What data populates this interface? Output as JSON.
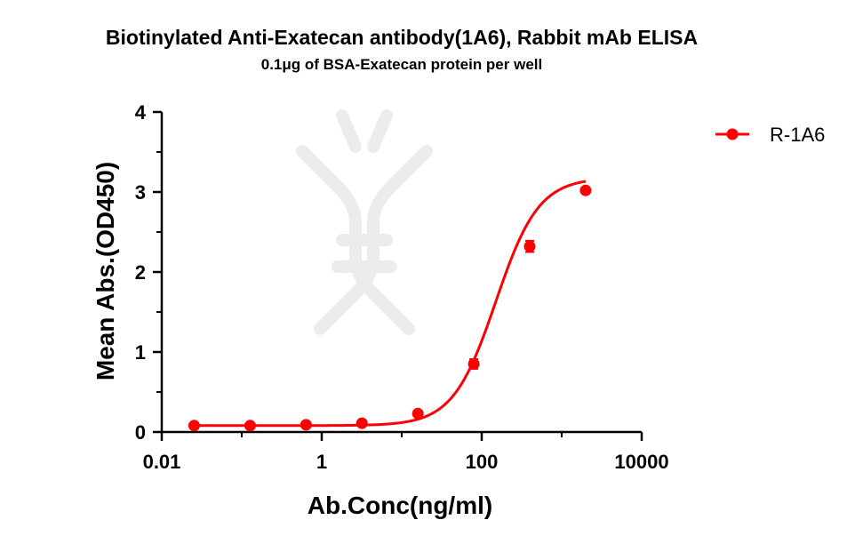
{
  "chart_data": {
    "type": "scatter",
    "title": "Biotinylated Anti-Exatecan antibody(1A6), Rabbit mAb ELISA",
    "subtitle": "0.1μg of BSA-Exatecan protein per well",
    "xlabel": "Ab.Conc(ng/ml)",
    "ylabel": "Mean Abs.(OD450)",
    "xscale": "log",
    "xlim": [
      0.01,
      10000
    ],
    "ylim": [
      0,
      4
    ],
    "x_ticks": [
      0.01,
      1,
      100,
      10000
    ],
    "x_tick_labels": [
      "0.01",
      "1",
      "100",
      "10000"
    ],
    "y_ticks": [
      0,
      1,
      2,
      3,
      4
    ],
    "y_tick_labels": [
      "0",
      "1",
      "2",
      "3",
      "4"
    ],
    "legend_position": "top-right",
    "curve_fit": "4PL",
    "series": [
      {
        "name": "R-1A6",
        "color": "#ff0000",
        "x": [
          0.0254,
          0.1273,
          0.6366,
          3.18,
          15.92,
          79.6,
          398,
          1990
        ],
        "y": [
          0.08,
          0.08,
          0.09,
          0.11,
          0.23,
          0.85,
          2.32,
          3.02
        ],
        "error": [
          0.01,
          0.01,
          0.01,
          0.02,
          0.02,
          0.06,
          0.07,
          0.03
        ]
      }
    ]
  }
}
